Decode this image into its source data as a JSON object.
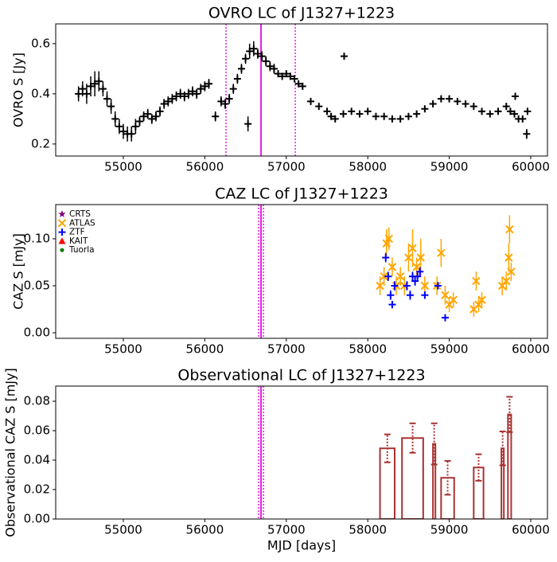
{
  "chart_data": [
    {
      "type": "scatter",
      "title": "OVRO LC of J1327+1223",
      "ylabel": "OVRO S [Jy]",
      "xlim": [
        54170,
        60205
      ],
      "xticks": [
        55000,
        56000,
        57000,
        58000,
        59000,
        60000
      ],
      "ylim": [
        0.152,
        0.679
      ],
      "yticks": [
        0.2,
        0.4,
        0.6
      ],
      "vlines": [
        {
          "x": 56260,
          "style": "dotted",
          "color": "#e020e0"
        },
        {
          "x": 56690,
          "style": "solid",
          "color": "#e020e0"
        },
        {
          "x": 57110,
          "style": "dotted",
          "color": "#e020e0"
        }
      ],
      "series": [
        {
          "name": "OVRO",
          "color": "#000000",
          "marker": "plus",
          "x": [
            54450,
            54500,
            54550,
            54600,
            54650,
            54700,
            54750,
            54800,
            54850,
            54900,
            54950,
            55000,
            55050,
            55100,
            55150,
            55200,
            55250,
            55300,
            55350,
            55400,
            55450,
            55500,
            55550,
            55600,
            55650,
            55700,
            55750,
            55800,
            55850,
            55900,
            55950,
            56000,
            56050,
            56130,
            56200,
            56250,
            56300,
            56350,
            56400,
            56450,
            56500,
            56530,
            56550,
            56600,
            56650,
            56700,
            56750,
            56800,
            56850,
            56900,
            56950,
            57000,
            57050,
            57100,
            57150,
            57200,
            57300,
            57400,
            57500,
            57550,
            57600,
            57700,
            57710,
            57800,
            57900,
            58000,
            58100,
            58200,
            58300,
            58400,
            58500,
            58600,
            58700,
            58800,
            58900,
            59000,
            59100,
            59200,
            59300,
            59400,
            59500,
            59600,
            59700,
            59750,
            59800,
            59810,
            59850,
            59900,
            59950,
            59960
          ],
          "values": [
            0.4,
            0.42,
            0.4,
            0.43,
            0.44,
            0.45,
            0.42,
            0.38,
            0.35,
            0.3,
            0.27,
            0.25,
            0.24,
            0.24,
            0.27,
            0.29,
            0.31,
            0.32,
            0.3,
            0.31,
            0.33,
            0.36,
            0.37,
            0.38,
            0.39,
            0.4,
            0.39,
            0.4,
            0.41,
            0.4,
            0.42,
            0.43,
            0.44,
            0.31,
            0.37,
            0.36,
            0.38,
            0.42,
            0.46,
            0.5,
            0.54,
            0.28,
            0.57,
            0.58,
            0.56,
            0.55,
            0.53,
            0.51,
            0.5,
            0.48,
            0.47,
            0.48,
            0.47,
            0.46,
            0.44,
            0.43,
            0.37,
            0.35,
            0.33,
            0.31,
            0.3,
            0.32,
            0.55,
            0.33,
            0.32,
            0.33,
            0.31,
            0.31,
            0.3,
            0.3,
            0.31,
            0.32,
            0.34,
            0.36,
            0.38,
            0.38,
            0.37,
            0.36,
            0.35,
            0.33,
            0.32,
            0.33,
            0.35,
            0.33,
            0.32,
            0.39,
            0.3,
            0.3,
            0.24,
            0.33
          ],
          "errors": [
            0.03,
            0.03,
            0.04,
            0.04,
            0.05,
            0.04,
            0.03,
            0.03,
            0.03,
            0.03,
            0.03,
            0.03,
            0.03,
            0.03,
            0.03,
            0.02,
            0.02,
            0.02,
            0.02,
            0.02,
            0.02,
            0.02,
            0.02,
            0.02,
            0.02,
            0.02,
            0.02,
            0.02,
            0.02,
            0.02,
            0.02,
            0.02,
            0.02,
            0.02,
            0.02,
            0.02,
            0.02,
            0.02,
            0.02,
            0.02,
            0.02,
            0.03,
            0.03,
            0.03,
            0.02,
            0.02,
            0.02,
            0.02,
            0.02,
            0.01,
            0.01,
            0.01,
            0.01,
            0.01,
            0.01,
            0.01,
            0.01,
            0.01,
            0.01,
            0.01,
            0.01,
            0.01,
            0.01,
            0.01,
            0.01,
            0.01,
            0.01,
            0.01,
            0.01,
            0.01,
            0.01,
            0.01,
            0.01,
            0.01,
            0.01,
            0.01,
            0.01,
            0.01,
            0.01,
            0.01,
            0.01,
            0.01,
            0.01,
            0.01,
            0.01,
            0.01,
            0.01,
            0.01,
            0.02,
            0.01
          ]
        }
      ]
    },
    {
      "type": "scatter",
      "title": "CAZ LC of J1327+1223",
      "ylabel": "CAZ S [mJy]",
      "xlim": [
        54170,
        60205
      ],
      "xticks": [
        55000,
        56000,
        57000,
        58000,
        59000,
        60000
      ],
      "ylim": [
        -0.0059,
        0.1364
      ],
      "yticks": [
        {
          "value": 0,
          "label": "0.00"
        },
        {
          "value": 0.05,
          "label": "0.05"
        },
        {
          "value": 0.1,
          "label": "0.10"
        }
      ],
      "legend": "upper left",
      "vlines": [
        {
          "x": 56660,
          "style": "dotted",
          "color": "#e020e0"
        },
        {
          "x": 56690,
          "style": "solid",
          "color": "#e020e0"
        },
        {
          "x": 56720,
          "style": "dotted",
          "color": "#e020e0"
        }
      ],
      "series": [
        {
          "name": "CRTS",
          "color": "#800080",
          "marker": "star",
          "x": [],
          "values": [],
          "errors": []
        },
        {
          "name": "ATLAS",
          "color": "#ffa500",
          "marker": "x",
          "x": [
            58150,
            58200,
            58230,
            58260,
            58300,
            58350,
            58400,
            58450,
            58500,
            58550,
            58600,
            58650,
            58700,
            58850,
            58900,
            58950,
            59000,
            59050,
            59300,
            59330,
            59360,
            59400,
            59650,
            59700,
            59730,
            59740,
            59760
          ],
          "values": [
            0.05,
            0.06,
            0.095,
            0.1,
            0.07,
            0.05,
            0.06,
            0.05,
            0.08,
            0.09,
            0.07,
            0.08,
            0.05,
            0.05,
            0.085,
            0.04,
            0.03,
            0.035,
            0.025,
            0.055,
            0.03,
            0.035,
            0.05,
            0.055,
            0.08,
            0.11,
            0.065
          ],
          "errors": [
            0.01,
            0.01,
            0.015,
            0.012,
            0.01,
            0.01,
            0.01,
            0.01,
            0.015,
            0.02,
            0.01,
            0.02,
            0.01,
            0.01,
            0.015,
            0.01,
            0.008,
            0.008,
            0.008,
            0.01,
            0.008,
            0.008,
            0.01,
            0.01,
            0.015,
            0.015,
            0.01
          ]
        },
        {
          "name": "ZTF",
          "color": "#0000ff",
          "marker": "plus",
          "x": [
            58220,
            58250,
            58280,
            58300,
            58330,
            58480,
            58520,
            58550,
            58580,
            58610,
            58640,
            58700,
            58860,
            58950
          ],
          "values": [
            0.08,
            0.06,
            0.04,
            0.03,
            0.05,
            0.05,
            0.04,
            0.06,
            0.055,
            0.06,
            0.065,
            0.04,
            0.05,
            0.016
          ],
          "errors": [
            0.005,
            0.005,
            0.005,
            0.004,
            0.005,
            0.005,
            0.005,
            0.005,
            0.005,
            0.005,
            0.005,
            0.004,
            0.004,
            0.002
          ]
        },
        {
          "name": "KAIT",
          "color": "#ff0000",
          "marker": "triangle",
          "x": [],
          "values": [],
          "errors": []
        },
        {
          "name": "Tuorla",
          "color": "#008000",
          "marker": "dot",
          "x": [],
          "values": [],
          "errors": []
        }
      ]
    },
    {
      "type": "bar",
      "title": "Observational LC of J1327+1223",
      "ylabel": "Observational CAZ S [mJy]",
      "xlabel": "MJD [days]",
      "xlim": [
        54170,
        60205
      ],
      "xticks": [
        55000,
        56000,
        57000,
        58000,
        59000,
        60000
      ],
      "ylim": [
        0,
        0.0903
      ],
      "yticks": [
        {
          "value": 0,
          "label": "0.00"
        },
        {
          "value": 0.02,
          "label": "0.02"
        },
        {
          "value": 0.04,
          "label": "0.04"
        },
        {
          "value": 0.06,
          "label": "0.06"
        },
        {
          "value": 0.08,
          "label": "0.08"
        }
      ],
      "vlines": [
        {
          "x": 56660,
          "style": "dotted",
          "color": "#e020e0"
        },
        {
          "x": 56690,
          "style": "solid",
          "color": "#e020e0"
        },
        {
          "x": 56720,
          "style": "dotted",
          "color": "#e020e0"
        }
      ],
      "color": "#a83232",
      "x_start": [
        58150,
        58420,
        58800,
        58900,
        59300,
        59640,
        59720
      ],
      "x_end": [
        58330,
        58680,
        58830,
        59060,
        59420,
        59670,
        59760
      ],
      "values": [
        0.048,
        0.055,
        0.051,
        0.028,
        0.035,
        0.048,
        0.071
      ],
      "errors": [
        0.0095,
        0.01,
        0.014,
        0.0115,
        0.009,
        0.0115,
        0.012
      ]
    }
  ]
}
